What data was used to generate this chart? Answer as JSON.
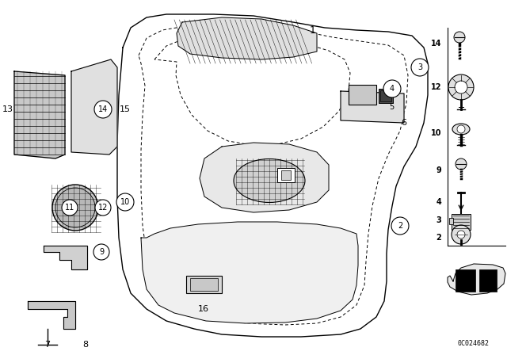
{
  "bg_color": "#ffffff",
  "line_color": "#000000",
  "catalog_num": "0C024682",
  "fig_width": 6.4,
  "fig_height": 4.48,
  "dpi": 100
}
